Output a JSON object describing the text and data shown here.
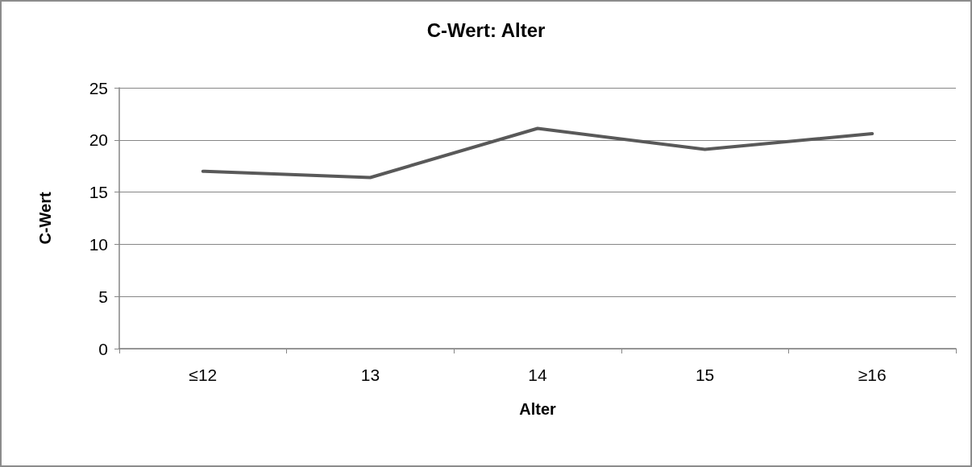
{
  "chart_data": {
    "type": "line",
    "title": "C-Wert: Alter",
    "xlabel": "Alter",
    "ylabel": "C-Wert",
    "categories": [
      "≤12",
      "13",
      "14",
      "15",
      "≥16"
    ],
    "series": [
      {
        "color": "#595959",
        "values": [
          17.0,
          16.4,
          21.1,
          19.1,
          20.6
        ]
      }
    ],
    "ylim": [
      0,
      25
    ],
    "yticks": [
      0,
      5,
      10,
      15,
      20,
      25
    ],
    "grid": "y",
    "marker": "none",
    "line_style": "solid"
  }
}
